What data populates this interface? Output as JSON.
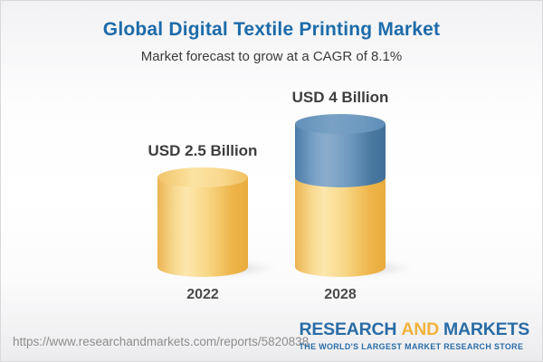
{
  "header": {
    "title": "Global Digital Textile Printing Market",
    "subtitle": "Market forecast to grow at a CAGR of 8.1%",
    "title_color": "#1d6ba9"
  },
  "chart_data": {
    "type": "bar",
    "title": "Global Digital Textile Printing Market",
    "subtitle": "Market forecast to grow at a CAGR of 8.1%",
    "unit": "USD Billion",
    "cagr": "8.1%",
    "categories": [
      "2022",
      "2028"
    ],
    "values": [
      2.5,
      4
    ],
    "legend_position": "none",
    "axes_visible": false,
    "bar_style": "3d-cylinder",
    "series": [
      {
        "category": "2022",
        "label": "USD 2.5 Billion",
        "total": 2.5,
        "segments": [
          {
            "name": "market-size-2022",
            "value": 2.5,
            "color": "#F5C564"
          }
        ]
      },
      {
        "category": "2028",
        "label": "USD 4 Billion",
        "total": 4,
        "segments": [
          {
            "name": "base-2022-level",
            "value": 2.5,
            "color": "#F5C564"
          },
          {
            "name": "forecast-growth",
            "value": 1.5,
            "color": "#5C8DB8"
          }
        ]
      }
    ]
  },
  "footer": {
    "url": "https://www.researchandmarkets.com/reports/5820838",
    "logo": {
      "part1": "RESEARCH",
      "part2": "AND",
      "part3": "MARKETS",
      "tagline": "THE WORLD'S LARGEST MARKET RESEARCH STORE",
      "blue": "#2a6ca6",
      "orange": "#f2b23c"
    }
  }
}
